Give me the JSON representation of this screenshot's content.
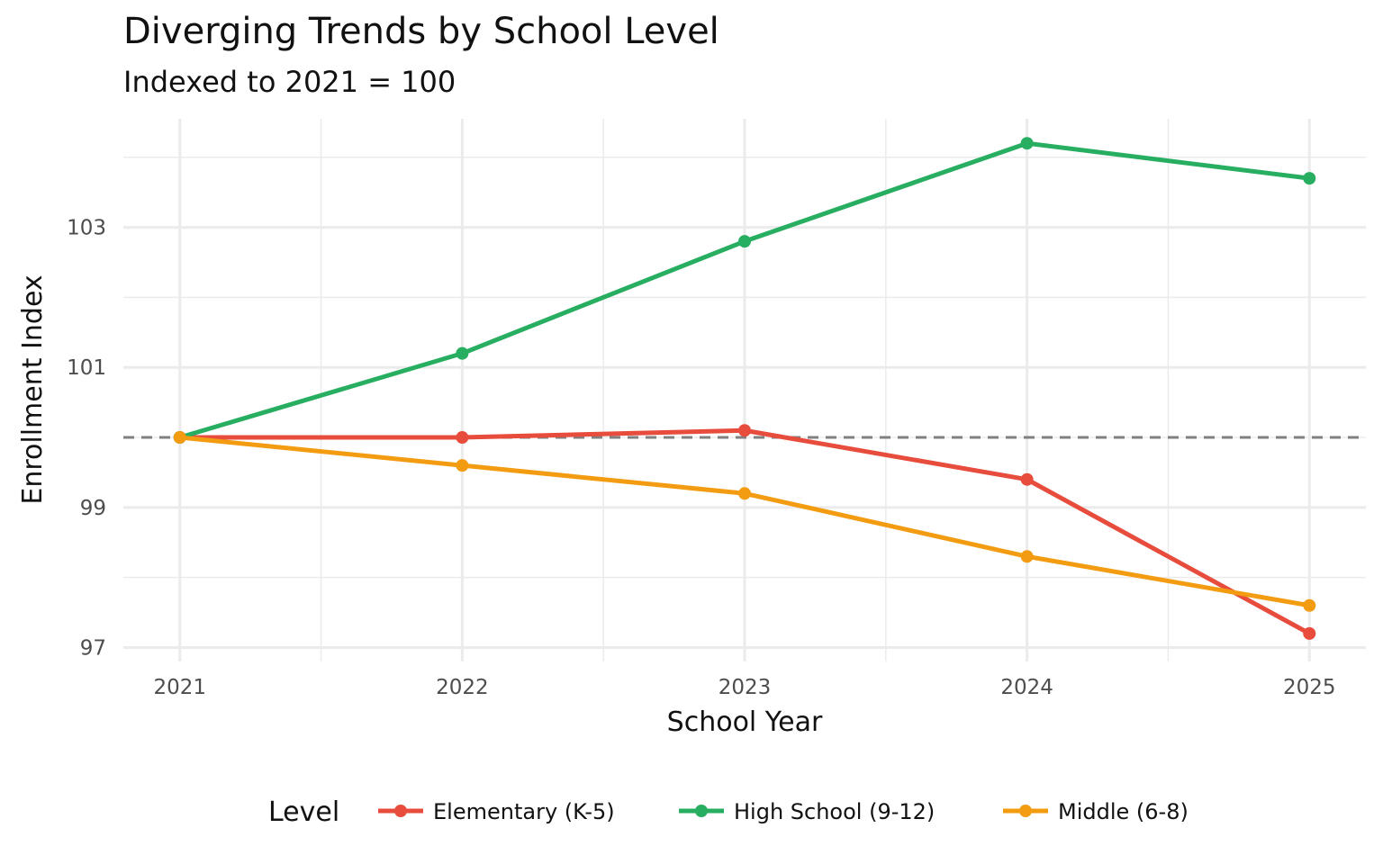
{
  "chart_data": {
    "type": "line",
    "title": "Diverging Trends by School Level",
    "subtitle": "Indexed to 2021 = 100",
    "xlabel": "School Year",
    "ylabel": "Enrollment Index",
    "x": [
      2021,
      2022,
      2023,
      2024,
      2025
    ],
    "x_ticks": [
      "2021",
      "2022",
      "2023",
      "2024",
      "2025"
    ],
    "y_ticks": [
      "97",
      "99",
      "101",
      "103"
    ],
    "ylim": [
      96.8,
      104.55
    ],
    "xlim": [
      2020.8,
      2025.2
    ],
    "grid": true,
    "reference_line": {
      "y": 100,
      "style": "dashed",
      "color": "#808080"
    },
    "legend": {
      "title": "Level",
      "placement": "bottom"
    },
    "series": [
      {
        "name": "Elementary (K-5)",
        "color": "#E74C3C",
        "values": [
          100,
          100.0,
          100.1,
          99.4,
          97.2
        ]
      },
      {
        "name": "High School (9-12)",
        "color": "#27AE60",
        "values": [
          100,
          101.2,
          102.8,
          104.2,
          103.7
        ]
      },
      {
        "name": "Middle (6-8)",
        "color": "#F39C12",
        "values": [
          100,
          99.6,
          99.2,
          98.3,
          97.6
        ]
      }
    ]
  }
}
